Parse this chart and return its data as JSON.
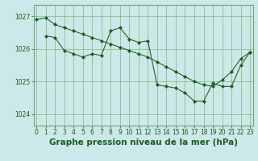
{
  "line1_x": [
    0,
    1,
    2,
    3,
    4,
    5,
    6,
    7,
    8,
    9,
    10,
    11,
    12,
    13,
    14,
    15,
    16,
    17,
    18,
    19,
    20,
    21,
    22,
    23
  ],
  "line1_y": [
    1026.9,
    1026.95,
    1026.75,
    1026.65,
    1026.55,
    1026.45,
    1026.35,
    1026.25,
    1026.15,
    1026.05,
    1025.95,
    1025.85,
    1025.75,
    1025.6,
    1025.45,
    1025.3,
    1025.15,
    1025.0,
    1024.9,
    1024.85,
    1025.05,
    1025.3,
    1025.7,
    1025.9
  ],
  "line2_x": [
    1,
    2,
    3,
    4,
    5,
    6,
    7,
    8,
    9,
    10,
    11,
    12,
    13,
    14,
    15,
    16,
    17,
    18,
    19,
    20,
    21,
    22,
    23
  ],
  "line2_y": [
    1026.4,
    1026.35,
    1025.95,
    1025.85,
    1025.75,
    1025.85,
    1025.8,
    1026.55,
    1026.65,
    1026.3,
    1026.2,
    1026.25,
    1024.9,
    1024.85,
    1024.8,
    1024.65,
    1024.4,
    1024.4,
    1024.95,
    1024.85,
    1024.85,
    1025.5,
    1025.9
  ],
  "line_color": "#1a5c1a",
  "marker": "D",
  "marker_size": 2.2,
  "bg_color": "#cce8e8",
  "grid_color_major": "#6aaa6a",
  "grid_color_minor": "#99cc99",
  "xlabel": "Graphe pression niveau de la mer (hPa)",
  "xlabel_color": "#1a5c1a",
  "xlabel_fontsize": 7.5,
  "tick_color": "#1a5c1a",
  "tick_fontsize": 5.5,
  "yticks": [
    1024,
    1025,
    1026,
    1027
  ],
  "ylim": [
    1023.65,
    1027.35
  ],
  "xlim": [
    -0.3,
    23.3
  ],
  "xticks": [
    0,
    1,
    2,
    3,
    4,
    5,
    6,
    7,
    8,
    9,
    10,
    11,
    12,
    13,
    14,
    15,
    16,
    17,
    18,
    19,
    20,
    21,
    22,
    23
  ],
  "line_width": 0.75
}
